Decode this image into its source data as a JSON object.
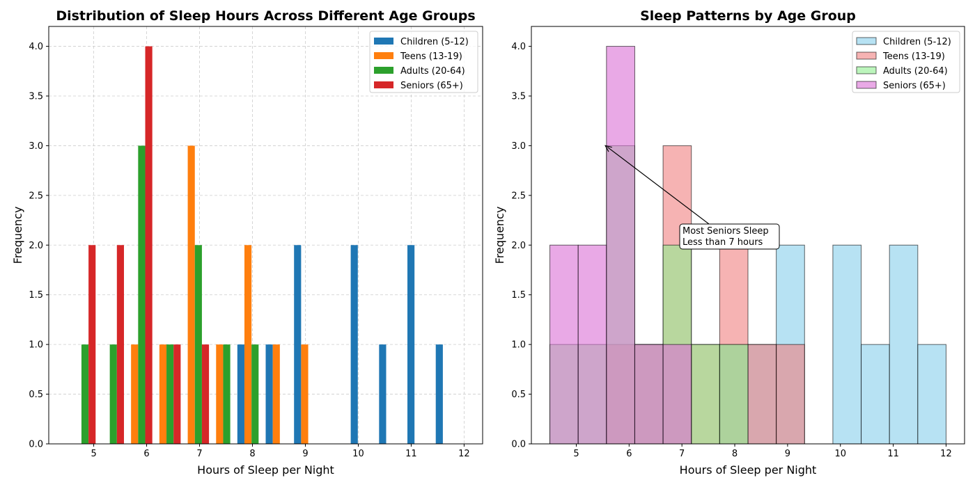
{
  "chart_data": [
    {
      "type": "bar",
      "title": "Distribution of Sleep Hours Across Different Age Groups",
      "xlabel": "Hours of Sleep per Night",
      "ylabel": "Frequency",
      "xlim": [
        4.15,
        12.35
      ],
      "ylim": [
        0,
        4.2
      ],
      "xticks": [
        5,
        6,
        7,
        8,
        9,
        10,
        11,
        12
      ],
      "yticks": [
        0.0,
        0.5,
        1.0,
        1.5,
        2.0,
        2.5,
        3.0,
        3.5,
        4.0
      ],
      "grid": true,
      "legend_position": "upper right",
      "bin_edges": [
        4.5,
        5.0357,
        5.5714,
        6.1071,
        6.6429,
        7.1786,
        7.7143,
        8.25,
        8.7857,
        9.3214,
        9.8571,
        10.3929,
        10.9286,
        11.4643,
        12.0
      ],
      "series": [
        {
          "name": "Children (5-12)",
          "color": "#1f77b4",
          "values": [
            0,
            0,
            0,
            0,
            0,
            0,
            1,
            1,
            2,
            0,
            2,
            1,
            2,
            1
          ]
        },
        {
          "name": "Teens (13-19)",
          "color": "#ff7f0e",
          "values": [
            0,
            0,
            1,
            1,
            3,
            1,
            2,
            1,
            1,
            0,
            0,
            0,
            0,
            0
          ]
        },
        {
          "name": "Adults (20-64)",
          "color": "#2ca02c",
          "values": [
            1,
            1,
            3,
            1,
            2,
            1,
            1,
            0,
            0,
            0,
            0,
            0,
            0,
            0
          ]
        },
        {
          "name": "Seniors (65+)",
          "color": "#d62728",
          "values": [
            2,
            2,
            4,
            1,
            1,
            0,
            0,
            0,
            0,
            0,
            0,
            0,
            0,
            0
          ]
        }
      ]
    },
    {
      "type": "bar",
      "title": "Sleep Patterns by Age Group",
      "xlabel": "Hours of Sleep per Night",
      "ylabel": "Frequency",
      "xlim": [
        4.15,
        12.35
      ],
      "ylim": [
        0,
        4.2
      ],
      "xticks": [
        5,
        6,
        7,
        8,
        9,
        10,
        11,
        12
      ],
      "yticks": [
        0.0,
        0.5,
        1.0,
        1.5,
        2.0,
        2.5,
        3.0,
        3.5,
        4.0
      ],
      "grid": false,
      "legend_position": "upper right",
      "bin_edges": [
        4.5,
        5.0357,
        5.5714,
        6.1071,
        6.6429,
        7.1786,
        7.7143,
        8.25,
        8.7857,
        9.3214,
        9.8571,
        10.3929,
        10.9286,
        11.4643,
        12.0
      ],
      "series": [
        {
          "name": "Children (5-12)",
          "color": "#87ceeb",
          "values": [
            0,
            0,
            0,
            0,
            0,
            0,
            1,
            1,
            2,
            0,
            2,
            1,
            2,
            1
          ]
        },
        {
          "name": "Teens (13-19)",
          "color": "#f08080",
          "values": [
            0,
            0,
            1,
            1,
            3,
            1,
            2,
            1,
            1,
            0,
            0,
            0,
            0,
            0
          ]
        },
        {
          "name": "Adults (20-64)",
          "color": "#90ee90",
          "values": [
            1,
            1,
            3,
            1,
            2,
            1,
            1,
            0,
            0,
            0,
            0,
            0,
            0,
            0
          ]
        },
        {
          "name": "Seniors (65+)",
          "color": "#da70d6",
          "values": [
            2,
            2,
            4,
            1,
            1,
            0,
            0,
            0,
            0,
            0,
            0,
            0,
            0,
            0
          ]
        }
      ],
      "annotation": {
        "lines": [
          "Most Seniors Sleep",
          "Less than 7 hours"
        ],
        "point": [
          5.55,
          3.0
        ],
        "text_at": [
          7.2,
          2.1
        ]
      }
    }
  ]
}
